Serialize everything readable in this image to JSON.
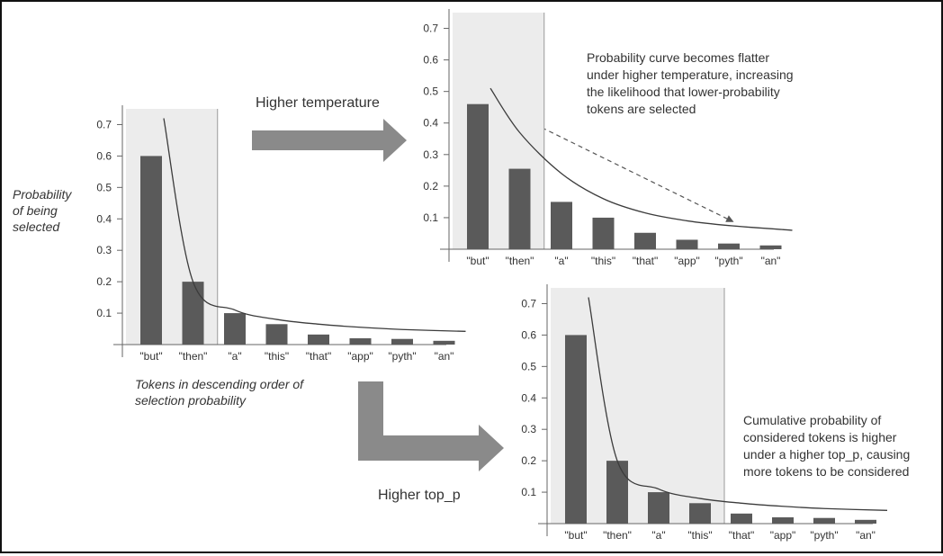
{
  "diagram": {
    "y_axis_label": [
      "Probability",
      "of being",
      "selected"
    ],
    "x_axis_label": [
      "Tokens in descending order of",
      "selection probability"
    ],
    "arrow_temperature_label": "Higher temperature",
    "arrow_top_p_label": "Higher top_p",
    "temperature_note": [
      "Probability curve becomes flatter",
      "under higher temperature, increasing",
      "the likelihood that lower-probability",
      "tokens are selected"
    ],
    "top_p_note": [
      "Cumulative probability of",
      "considered tokens is higher",
      "under a higher top_p, causing",
      "more tokens to be considered"
    ],
    "colors": {
      "bar": "#5a5a5a",
      "shade": "#ececec",
      "arrow": "#8a8a8a",
      "text": "#333333",
      "axis": "#666666"
    }
  },
  "chart_data": [
    {
      "type": "bar",
      "id": "base",
      "categories": [
        "\"but\"",
        "\"then\"",
        "\"a\"",
        "\"this\"",
        "\"that\"",
        "\"app\"",
        "\"pyth\"",
        "\"an\""
      ],
      "values": [
        0.6,
        0.2,
        0.1,
        0.065,
        0.032,
        0.02,
        0.018,
        0.012
      ],
      "curve": [
        0.72,
        0.2,
        0.11,
        0.08,
        0.065,
        0.055,
        0.048,
        0.042
      ],
      "yticks": [
        "0.1",
        "0.2",
        "0.3",
        "0.4",
        "0.5",
        "0.6",
        "0.7"
      ],
      "ylim": [
        0,
        0.75
      ],
      "shaded_categories": 2
    },
    {
      "type": "bar",
      "id": "temperature",
      "categories": [
        "\"but\"",
        "\"then\"",
        "\"a\"",
        "\"this\"",
        "\"that\"",
        "\"app\"",
        "\"pyth\"",
        "\"an\""
      ],
      "values": [
        0.46,
        0.255,
        0.15,
        0.1,
        0.052,
        0.03,
        0.018,
        0.012
      ],
      "curve": [
        0.51,
        0.37,
        0.24,
        0.16,
        0.115,
        0.09,
        0.075,
        0.06
      ],
      "yticks": [
        "0.1",
        "0.2",
        "0.3",
        "0.4",
        "0.5",
        "0.6",
        "0.7"
      ],
      "ylim": [
        0,
        0.75
      ],
      "shaded_categories": 2
    },
    {
      "type": "bar",
      "id": "top_p",
      "categories": [
        "\"but\"",
        "\"then\"",
        "\"a\"",
        "\"this\"",
        "\"that\"",
        "\"app\"",
        "\"pyth\"",
        "\"an\""
      ],
      "values": [
        0.6,
        0.2,
        0.1,
        0.065,
        0.032,
        0.02,
        0.018,
        0.012
      ],
      "curve": [
        0.72,
        0.2,
        0.11,
        0.08,
        0.065,
        0.055,
        0.048,
        0.042
      ],
      "yticks": [
        "0.1",
        "0.2",
        "0.3",
        "0.4",
        "0.5",
        "0.6",
        "0.7"
      ],
      "ylim": [
        0,
        0.75
      ],
      "shaded_categories": 4
    }
  ]
}
